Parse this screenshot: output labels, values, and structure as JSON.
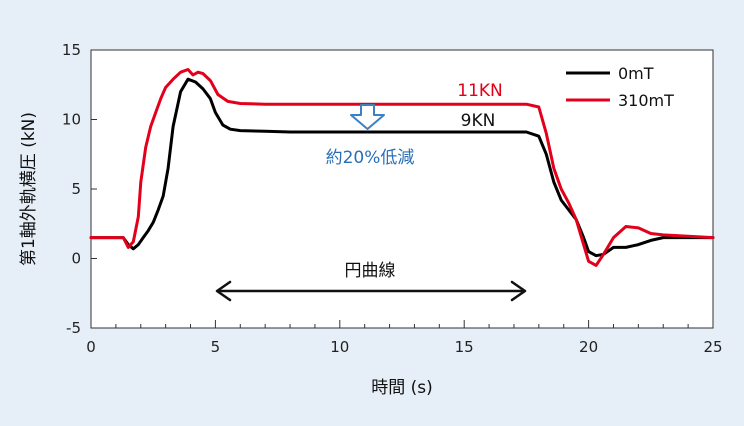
{
  "chart_data": {
    "type": "line",
    "title": "",
    "xlabel": "時間 (s)",
    "ylabel": "第1軸外軌横圧 (kN)",
    "xlim": [
      0,
      25
    ],
    "ylim": [
      -5,
      15
    ],
    "xticks": [
      0,
      5,
      10,
      15,
      20,
      25
    ],
    "yticks": [
      -5,
      0,
      5,
      10,
      15
    ],
    "grid": false,
    "legend_position": "top-right",
    "series": [
      {
        "name": "0mT",
        "color": "#000000",
        "x": [
          0,
          0.5,
          1.0,
          1.3,
          1.5,
          1.7,
          1.9,
          2.1,
          2.3,
          2.5,
          2.7,
          2.9,
          3.1,
          3.3,
          3.6,
          3.9,
          4.2,
          4.5,
          4.8,
          5.0,
          5.3,
          5.6,
          6.0,
          7.0,
          8.0,
          10.0,
          12.0,
          14.0,
          16.0,
          17.5,
          18.0,
          18.3,
          18.6,
          18.9,
          19.2,
          19.5,
          19.8,
          20.0,
          20.3,
          20.6,
          21.0,
          21.5,
          22.0,
          22.5,
          23.0,
          24.0,
          25.0
        ],
        "values": [
          1.5,
          1.5,
          1.5,
          1.5,
          1.0,
          0.7,
          1.0,
          1.5,
          2.0,
          2.6,
          3.5,
          4.5,
          6.5,
          9.5,
          12.0,
          12.9,
          12.7,
          12.2,
          11.5,
          10.5,
          9.6,
          9.3,
          9.2,
          9.15,
          9.1,
          9.1,
          9.1,
          9.1,
          9.1,
          9.1,
          8.8,
          7.5,
          5.5,
          4.2,
          3.5,
          2.8,
          1.5,
          0.5,
          0.2,
          0.3,
          0.8,
          0.8,
          1.0,
          1.3,
          1.5,
          1.5,
          1.5
        ]
      },
      {
        "name": "310mT",
        "color": "#e2001a",
        "x": [
          0,
          0.5,
          1.0,
          1.3,
          1.5,
          1.7,
          1.9,
          2.0,
          2.2,
          2.4,
          2.6,
          2.8,
          3.0,
          3.3,
          3.6,
          3.9,
          4.1,
          4.3,
          4.5,
          4.8,
          5.1,
          5.5,
          6.0,
          7.0,
          8.0,
          10.0,
          12.0,
          14.0,
          16.0,
          17.5,
          18.0,
          18.3,
          18.6,
          18.9,
          19.2,
          19.5,
          19.8,
          20.0,
          20.3,
          20.6,
          21.0,
          21.5,
          22.0,
          22.5,
          23.0,
          24.0,
          25.0
        ],
        "values": [
          1.5,
          1.5,
          1.5,
          1.5,
          0.8,
          1.2,
          3.0,
          5.5,
          8.0,
          9.5,
          10.5,
          11.5,
          12.3,
          12.9,
          13.4,
          13.6,
          13.2,
          13.4,
          13.3,
          12.8,
          11.8,
          11.3,
          11.15,
          11.1,
          11.1,
          11.1,
          11.1,
          11.1,
          11.1,
          11.1,
          10.9,
          9.0,
          6.5,
          5.0,
          4.0,
          2.8,
          1.0,
          -0.2,
          -0.5,
          0.3,
          1.5,
          2.3,
          2.2,
          1.8,
          1.7,
          1.6,
          1.5
        ]
      }
    ],
    "annotations": {
      "label_11kn": "11KN",
      "label_9kn": "9KN",
      "reduction": "約20%低減",
      "curve": "円曲線"
    },
    "colors": {
      "red_line": "#e2001a",
      "black_line": "#000000",
      "arrow_blue": "#3b82c4",
      "reduction_text": "#2a6fb5",
      "background": "#e6eef8",
      "plot_bg": "#ffffff"
    }
  }
}
